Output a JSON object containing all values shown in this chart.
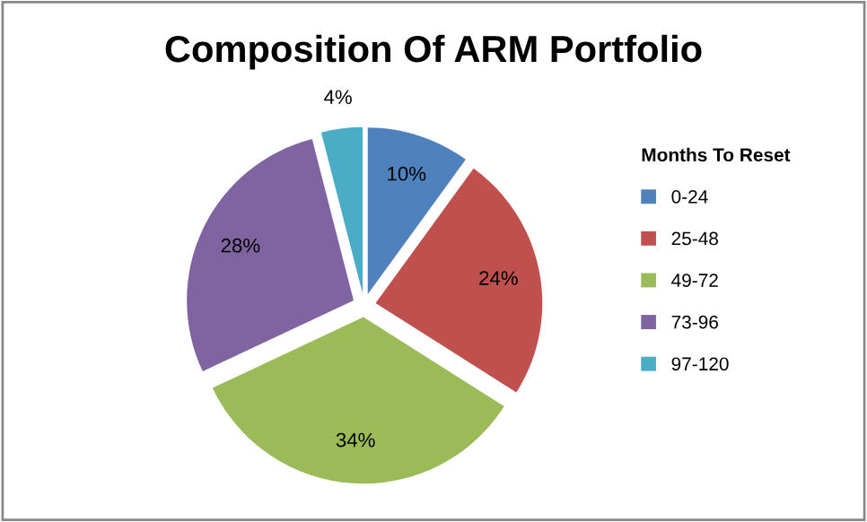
{
  "chart_data": {
    "type": "pie",
    "title": "Composition Of ARM Portfolio",
    "legend_title": "Months To Reset",
    "legend": "right",
    "categories": [
      "0-24",
      "25-48",
      "49-72",
      "73-96",
      "97-120"
    ],
    "values": [
      10,
      24,
      34,
      28,
      4
    ],
    "colors": [
      "#4f81bd",
      "#c0504d",
      "#9bbb59",
      "#8064a2",
      "#4bacc6"
    ],
    "value_labels": [
      "10%",
      "24%",
      "34%",
      "28%",
      "4%"
    ]
  }
}
